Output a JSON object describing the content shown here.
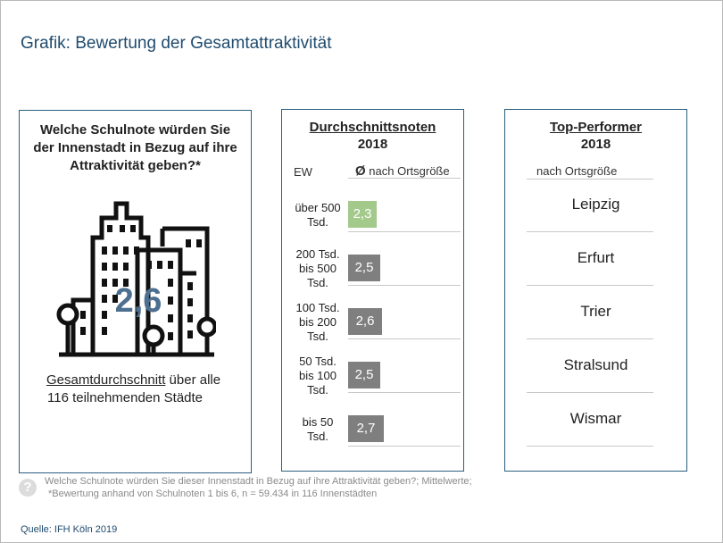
{
  "header": {
    "title": "Grafik: Bewertung der Gesamtattraktivität"
  },
  "left": {
    "question_l1": "Welche Schulnote würden Sie",
    "question_l2": "der Innenstadt in Bezug auf ihre",
    "question_l3": "Attraktivität geben?*",
    "grade": "2,6",
    "caption_underlined": "Gesamtdurchschnitt",
    "caption_rest": " über alle",
    "caption_l2": "116 teilnehmenden Städte"
  },
  "middle": {
    "heading": "Durchschnittsnoten",
    "year": "2018",
    "col_ew": "EW",
    "col_avg_symbol": "Ø",
    "col_avg_text": " nach Ortsgröße",
    "colors": {
      "highlight": "#a3c98b",
      "default": "#7f7f7f"
    },
    "rows": [
      {
        "l1": "über 500",
        "l2": "Tsd.",
        "l3": "",
        "value": "2,3"
      },
      {
        "l1": "200 Tsd.",
        "l2": "bis 500",
        "l3": "Tsd.",
        "value": "2,5"
      },
      {
        "l1": "100 Tsd.",
        "l2": "bis 200",
        "l3": "Tsd.",
        "value": "2,6"
      },
      {
        "l1": "50 Tsd.",
        "l2": "bis 100",
        "l3": "Tsd.",
        "value": "2,5"
      },
      {
        "l1": "bis 50",
        "l2": "Tsd.",
        "l3": "",
        "value": "2,7"
      }
    ]
  },
  "right": {
    "heading": "Top-Performer",
    "year": "2018",
    "subheader": "nach Ortsgröße",
    "cities": [
      "Leipzig",
      "Erfurt",
      "Trier",
      "Stralsund",
      "Wismar"
    ]
  },
  "footnote": {
    "line1": "Welche Schulnote würden Sie dieser Innenstadt in Bezug auf ihre Attraktivität geben?; Mittelwerte;",
    "line2": "*Bewertung anhand von Schulnoten 1 bis 6, n = 59.434 in 116 Innenstädten",
    "icon": "question-icon"
  },
  "source": "Quelle: IFH Köln 2019"
}
